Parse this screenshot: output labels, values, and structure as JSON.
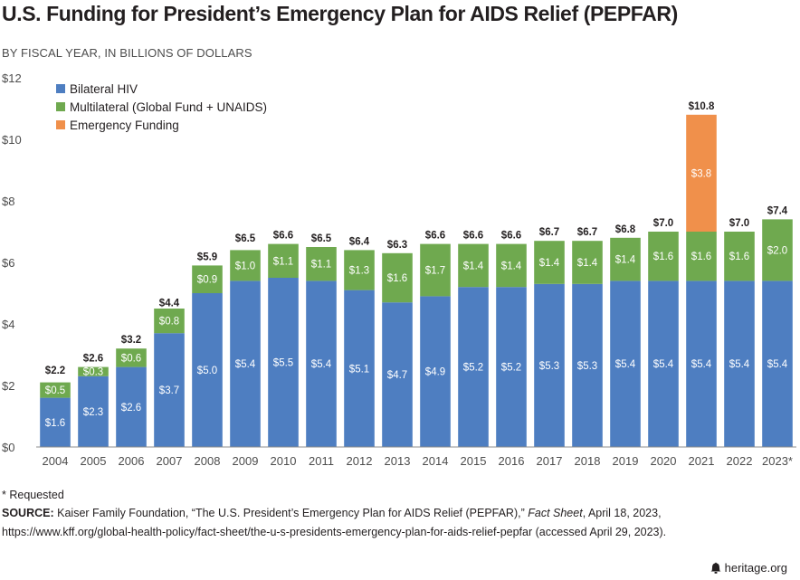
{
  "header": {
    "title": "U.S. Funding for President’s Emergency Plan for AIDS Relief (PEPFAR)",
    "subtitle": "BY FISCAL YEAR, IN BILLIONS OF DOLLARS"
  },
  "colors": {
    "bilateral": "#4e7ec1",
    "multilateral": "#6fa94f",
    "emergency": "#f0904b",
    "axis": "#8c8c8c"
  },
  "chart_data": {
    "type": "bar",
    "stacked": true,
    "title": "U.S. Funding for President’s Emergency Plan for AIDS Relief (PEPFAR)",
    "ylabel": "BY FISCAL YEAR, IN BILLIONS OF DOLLARS",
    "xlabel": "",
    "ylim": [
      0,
      12
    ],
    "yticks": [
      0,
      2,
      4,
      6,
      8,
      10,
      12
    ],
    "ytick_labels": [
      "$0",
      "$2",
      "$4",
      "$6",
      "$8",
      "$10",
      "$12"
    ],
    "legend_position": "top-left",
    "categories": [
      "2004",
      "2005",
      "2006",
      "2007",
      "2008",
      "2009",
      "2010",
      "2011",
      "2012",
      "2013",
      "2014",
      "2015",
      "2016",
      "2017",
      "2018",
      "2019",
      "2020",
      "2021",
      "2022",
      "2023*"
    ],
    "series": [
      {
        "name": "Bilateral HIV",
        "color_key": "bilateral",
        "values": [
          1.6,
          2.3,
          2.6,
          3.7,
          5.0,
          5.4,
          5.5,
          5.4,
          5.1,
          4.7,
          4.9,
          5.2,
          5.2,
          5.3,
          5.3,
          5.4,
          5.4,
          5.4,
          5.4,
          5.4
        ],
        "labels": [
          "$1.6",
          "$2.3",
          "$2.6",
          "$3.7",
          "$5.0",
          "$5.4",
          "$5.5",
          "$5.4",
          "$5.1",
          "$4.7",
          "$4.9",
          "$5.2",
          "$5.2",
          "$5.3",
          "$5.3",
          "$5.4",
          "$5.4",
          "$5.4",
          "$5.4",
          "$5.4"
        ]
      },
      {
        "name": "Multilateral (Global Fund + UNAIDS)",
        "color_key": "multilateral",
        "values": [
          0.5,
          0.3,
          0.6,
          0.8,
          0.9,
          1.0,
          1.1,
          1.1,
          1.3,
          1.6,
          1.7,
          1.4,
          1.4,
          1.4,
          1.4,
          1.4,
          1.6,
          1.6,
          1.6,
          2.0
        ],
        "labels": [
          "$0.5",
          "$0.3",
          "$0.6",
          "$0.8",
          "$0.9",
          "$1.0",
          "$1.1",
          "$1.1",
          "$1.3",
          "$1.6",
          "$1.7",
          "$1.4",
          "$1.4",
          "$1.4",
          "$1.4",
          "$1.4",
          "$1.6",
          "$1.6",
          "$1.6",
          "$2.0"
        ]
      },
      {
        "name": "Emergency Funding",
        "color_key": "emergency",
        "values": [
          0,
          0,
          0,
          0,
          0,
          0,
          0,
          0,
          0,
          0,
          0,
          0,
          0,
          0,
          0,
          0,
          0,
          3.8,
          0,
          0
        ],
        "labels": [
          "",
          "",
          "",
          "",
          "",
          "",
          "",
          "",
          "",
          "",
          "",
          "",
          "",
          "",
          "",
          "",
          "",
          "$3.8",
          "",
          ""
        ]
      }
    ],
    "totals": [
      2.2,
      2.6,
      3.2,
      4.4,
      5.9,
      6.5,
      6.6,
      6.5,
      6.4,
      6.3,
      6.6,
      6.6,
      6.6,
      6.7,
      6.7,
      6.8,
      7.0,
      10.8,
      7.0,
      7.4
    ],
    "total_labels": [
      "$2.2",
      "$2.6",
      "$3.2",
      "$4.4",
      "$5.9",
      "$6.5",
      "$6.6",
      "$6.5",
      "$6.4",
      "$6.3",
      "$6.6",
      "$6.6",
      "$6.6",
      "$6.7",
      "$6.7",
      "$6.8",
      "$7.0",
      "$10.8",
      "$7.0",
      "$7.4"
    ]
  },
  "footer": {
    "requested_note": "* Requested",
    "source_label": "SOURCE:",
    "source_text_a": " Kaiser Family Foundation, “The U.S. President’s Emergency Plan for AIDS Relief (PEPFAR),” ",
    "source_text_italic": "Fact Sheet",
    "source_text_b": ", April 18, 2023,",
    "source_url_line": "https://www.kff.org/global-health-policy/fact-sheet/the-u-s-presidents-emergency-plan-for-aids-relief-pepfar (accessed April 29, 2023).",
    "brand": "heritage.org",
    "brand_icon": "liberty-bell-icon"
  }
}
